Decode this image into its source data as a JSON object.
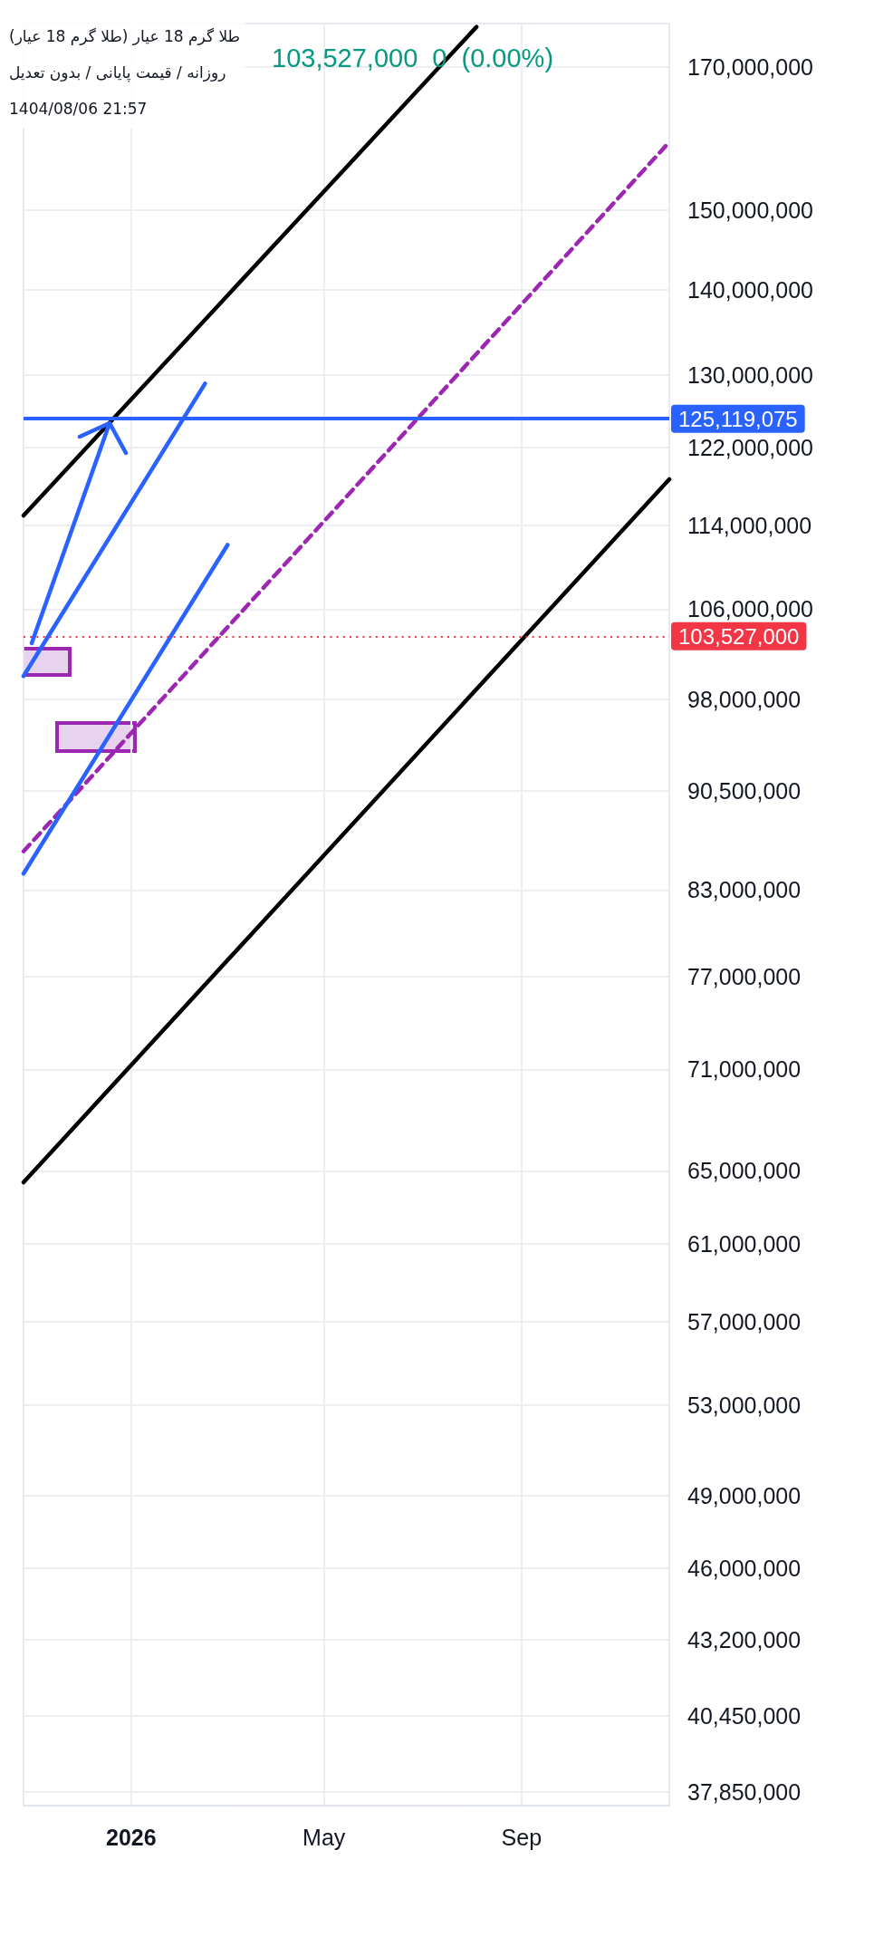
{
  "chart_data": {
    "type": "line",
    "title": "طلا گرم 18 عیار (طلا گرم 18 عیار)",
    "subtitle": "روزانه / قیمت پایانی / بدون تعدیل",
    "annotations": [
      "1404/08/06 21:57",
      "103,527,000 0 (0.00%)"
    ],
    "series": [
      {
        "color": "#000000",
        "x": [
          "2025-10-26",
          "2026-08-04"
        ],
        "values": [
          115000000,
          176000000
        ]
      },
      {
        "color": "#000000",
        "x": [
          "2025-10-26",
          "2026-12-02"
        ],
        "values": [
          64350000,
          118700000
        ]
      },
      {
        "color": "#9c27b0",
        "line_style": "dashed",
        "x": [
          "2025-10-26",
          "2026-12-02"
        ],
        "values": [
          85850000,
          159200000
        ]
      },
      {
        "color": "#2962ff",
        "x": [
          "2025-10-26",
          "2026-03-02"
        ],
        "values": [
          84200000,
          112100000
        ]
      },
      {
        "color": "#2962ff",
        "x": [
          "2025-10-26",
          "2026-02-16"
        ],
        "values": [
          100000000,
          129000000
        ]
      }
    ],
    "ref_lines": [
      {
        "axis": "y",
        "value": 125119075,
        "label": "125,119,075",
        "color": "#2962ff",
        "line_style": "solid"
      },
      {
        "axis": "y",
        "value": 103527000,
        "label": "103,527,000",
        "color": "#f23645",
        "line_style": "dotted"
      }
    ],
    "xlim": [
      "2025-10-26",
      "2026-12-02"
    ],
    "xticks": [
      {
        "value": "2026-01-01",
        "label": "2026"
      },
      {
        "value": "2026-05-01",
        "label": "May"
      },
      {
        "value": "2026-09-01",
        "label": "Sep"
      }
    ],
    "ylim": [
      37400000,
      176500000
    ],
    "yticks": [
      {
        "value": 37850000,
        "label": "37,850,000"
      },
      {
        "value": 40450000,
        "label": "40,450,000"
      },
      {
        "value": 43200000,
        "label": "43,200,000"
      },
      {
        "value": 46000000,
        "label": "46,000,000"
      },
      {
        "value": 49000000,
        "label": "49,000,000"
      },
      {
        "value": 53000000,
        "label": "53,000,000"
      },
      {
        "value": 57000000,
        "label": "57,000,000"
      },
      {
        "value": 61000000,
        "label": "61,000,000"
      },
      {
        "value": 65000000,
        "label": "65,000,000"
      },
      {
        "value": 71000000,
        "label": "71,000,000"
      },
      {
        "value": 77000000,
        "label": "77,000,000"
      },
      {
        "value": 83000000,
        "label": "83,000,000"
      },
      {
        "value": 90500000,
        "label": "90,500,000"
      },
      {
        "value": 98000000,
        "label": "98,000,000"
      },
      {
        "value": 106000000,
        "label": "106,000,000"
      },
      {
        "value": 114000000,
        "label": "114,000,000"
      },
      {
        "value": 122000000,
        "label": "122,000,000"
      },
      {
        "value": 130000000,
        "label": "130,000,000"
      },
      {
        "value": 140000000,
        "label": "140,000,000"
      },
      {
        "value": 150000000,
        "label": "150,000,000"
      },
      {
        "value": 170000000,
        "label": "170,000,000"
      }
    ],
    "log": true,
    "grid": true,
    "marker": "none",
    "line_style": "solid"
  }
}
